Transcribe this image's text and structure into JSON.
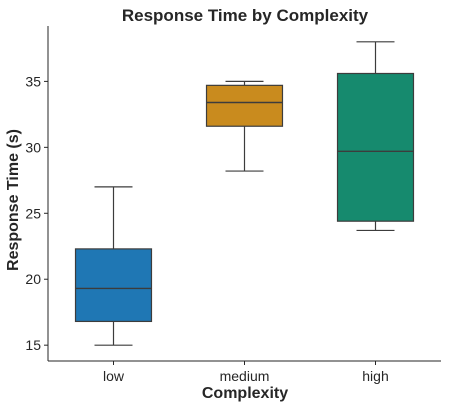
{
  "chart_data": {
    "type": "box",
    "title": "Response Time by Complexity",
    "xlabel": "Complexity",
    "ylabel": "Response Time (s)",
    "ylim": [
      13.8,
      39.2
    ],
    "yticks": [
      15,
      20,
      25,
      30,
      35
    ],
    "grid": false,
    "categories": [
      "low",
      "medium",
      "high"
    ],
    "boxes": [
      {
        "category": "low",
        "whisker_low": 15.0,
        "q1": 16.8,
        "median": 19.3,
        "q3": 22.3,
        "whisker_high": 27.0,
        "color": "#1f77b4"
      },
      {
        "category": "medium",
        "whisker_low": 28.2,
        "q1": 31.6,
        "median": 33.4,
        "q3": 34.7,
        "whisker_high": 35.0,
        "color": "#c98b1e"
      },
      {
        "category": "high",
        "whisker_low": 23.7,
        "q1": 24.4,
        "median": 29.7,
        "q3": 35.6,
        "whisker_high": 38.0,
        "color": "#168a6e"
      }
    ]
  }
}
